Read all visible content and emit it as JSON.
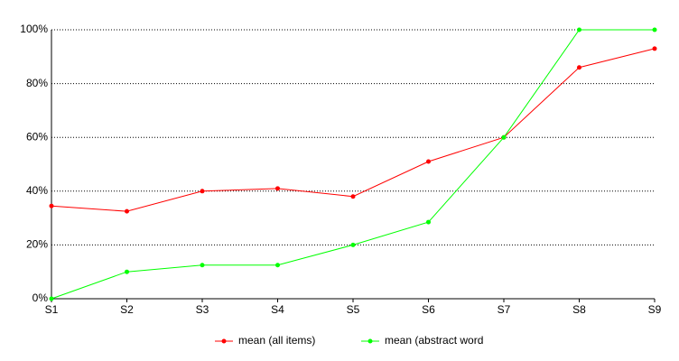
{
  "chart_data": {
    "type": "line",
    "categories": [
      "S1",
      "S2",
      "S3",
      "S4",
      "S5",
      "S6",
      "S7",
      "S8",
      "S9"
    ],
    "series": [
      {
        "name": "mean (all items)",
        "color": "#ff0000",
        "values": [
          34.5,
          32.5,
          40,
          41,
          38,
          51,
          60,
          86,
          93
        ]
      },
      {
        "name": "mean (abstract word",
        "color": "#00ff00",
        "values": [
          0,
          10,
          12.5,
          12.5,
          20,
          28.5,
          60,
          100,
          100
        ]
      }
    ],
    "ylim": [
      0,
      100
    ],
    "yticks": [
      {
        "value": 0,
        "label": "0%"
      },
      {
        "value": 20,
        "label": "20%"
      },
      {
        "value": 40,
        "label": "40%"
      },
      {
        "value": 60,
        "label": "60%"
      },
      {
        "value": 80,
        "label": "80%"
      },
      {
        "value": 100,
        "label": "100%"
      }
    ],
    "grid": true,
    "legend": "bottom"
  }
}
